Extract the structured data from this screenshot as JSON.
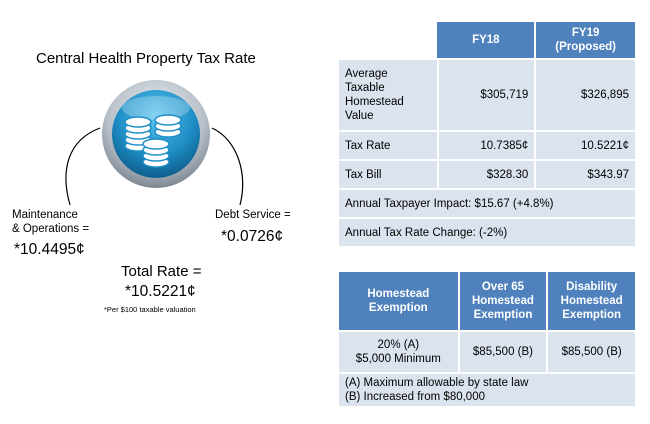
{
  "left": {
    "title": "Central Health Property Tax Rate",
    "mo_label_1": "Maintenance",
    "mo_label_2": "& Operations =",
    "mo_value": "*10.4495¢",
    "debt_label": "Debt Service =",
    "debt_value": "*0.0726¢",
    "total_label": "Total Rate =",
    "total_value": "*10.5221¢",
    "total_note": "*Per $100 taxable valuation",
    "icon": "coin-stacks-icon",
    "colors": {
      "icon_blue": "#1f8fc7",
      "icon_ring": "#a9b3bd"
    }
  },
  "tax_table": {
    "headers": [
      "FY18",
      "FY19 (Proposed)"
    ],
    "header_fy19_line1": "FY19",
    "header_fy19_line2": "(Proposed)",
    "rows": [
      {
        "label": "Average Taxable Homestead Value",
        "fy18": "$305,719",
        "fy19": "$326,895"
      },
      {
        "label": "Tax Rate",
        "fy18": "10.7385¢",
        "fy19": "10.5221¢"
      },
      {
        "label": "Tax Bill",
        "fy18": "$328.30",
        "fy19": "$343.97"
      }
    ],
    "impact": "Annual Taxpayer Impact: $15.67  (+4.8%)",
    "rate_change": "Annual Tax Rate Change: (-2%)",
    "colors": {
      "header": "#4f81bd",
      "cell": "#dbe3ef"
    }
  },
  "exemption_table": {
    "headers": [
      "Homestead Exemption",
      "Over 65 Homestead Exemption",
      "Disability Homestead Exemption"
    ],
    "row": [
      "20% (A) $5,000 Minimum",
      "$85,500 (B)",
      "$85,500 (B)"
    ],
    "row_first_line1": "20% (A)",
    "row_first_line2": "$5,000 Minimum",
    "footnote_a": "(A) Maximum allowable by state law",
    "footnote_b": "(B) Increased from $80,000"
  }
}
